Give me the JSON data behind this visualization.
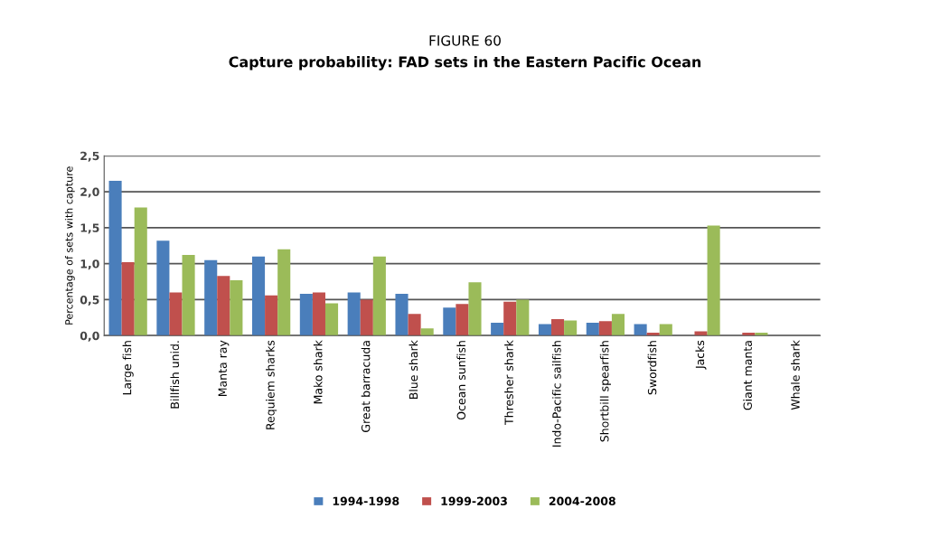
{
  "chart_data": {
    "type": "bar",
    "title": "FIGURE 60",
    "subtitle": "Capture probability: FAD sets in the Eastern Pacific Ocean",
    "ylabel": "Percentage of sets with capture",
    "categories": [
      "Large fish",
      "Billfish unid.",
      "Manta ray",
      "Requiem sharks",
      "Mako shark",
      "Great barracuda",
      "Blue shark",
      "Ocean sunfish",
      "Thresher shark",
      "Indo-Pacific sailfish",
      "Shortbill spearfish",
      "Swordfish",
      "Jacks",
      "Giant manta",
      "Whale shark"
    ],
    "series": [
      {
        "name": "1994-1998",
        "color": "#4a7ebb",
        "values": [
          2.15,
          1.32,
          1.05,
          1.1,
          0.58,
          0.6,
          0.58,
          0.39,
          0.18,
          0.16,
          0.18,
          0.16,
          0,
          0,
          0
        ]
      },
      {
        "name": "1999-2003",
        "color": "#c0504d",
        "values": [
          1.02,
          0.6,
          0.83,
          0.56,
          0.6,
          0.5,
          0.3,
          0.44,
          0.47,
          0.23,
          0.2,
          0.04,
          0.06,
          0.04,
          0
        ]
      },
      {
        "name": "2004-2008",
        "color": "#9bbb59",
        "values": [
          1.78,
          1.12,
          0.77,
          1.2,
          0.45,
          1.1,
          0.1,
          0.74,
          0.5,
          0.21,
          0.3,
          0.16,
          1.53,
          0.04,
          0
        ]
      }
    ],
    "ylim": [
      0,
      2.5
    ],
    "yticks": [
      {
        "value": 0,
        "label": "0,0"
      },
      {
        "value": 0.5,
        "label": "0,5"
      },
      {
        "value": 1,
        "label": "1,0"
      },
      {
        "value": 1.5,
        "label": "1,5"
      },
      {
        "value": 2,
        "label": "2,0"
      },
      {
        "value": 2.5,
        "label": "2,5"
      }
    ],
    "grid": "y",
    "legend": "bottom"
  }
}
